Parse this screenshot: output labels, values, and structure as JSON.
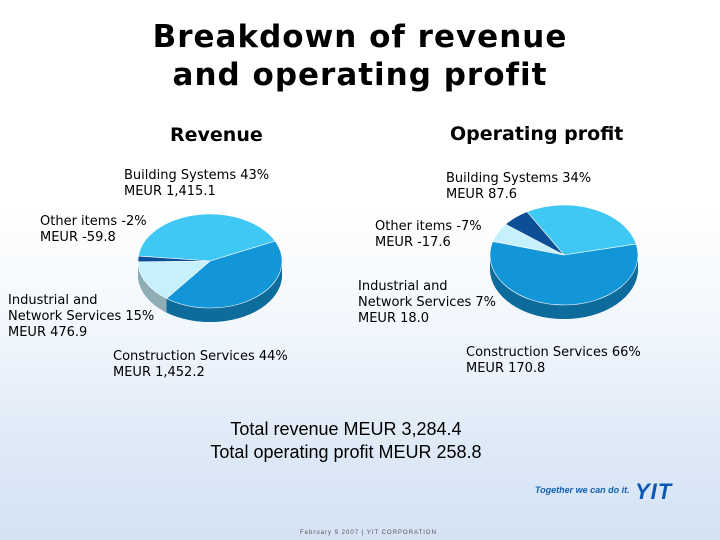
{
  "title": {
    "line1": "Breakdown of revenue",
    "line2": "and operating profit"
  },
  "chart_data": [
    {
      "type": "pie",
      "title": "Revenue",
      "slices": [
        {
          "label": "Building Systems 43%",
          "value_text": "MEUR 1,415.1",
          "percent": 43,
          "color": "#40c8f4"
        },
        {
          "label": "Construction Services 44%",
          "value_text": "MEUR 1,452.2",
          "percent": 44,
          "color": "#1396d8"
        },
        {
          "label": "Industrial and Network Services 15%",
          "value_text": "MEUR 476.9",
          "percent": 15,
          "color": "#c6f0fb"
        },
        {
          "label": "Other items -2%",
          "value_text": "MEUR -59.8",
          "percent": -2,
          "color": "#0d4f96"
        }
      ]
    },
    {
      "type": "pie",
      "title": "Operating profit",
      "slices": [
        {
          "label": "Building Systems 34%",
          "value_text": "MEUR 87.6",
          "percent": 34,
          "color": "#40c8f4"
        },
        {
          "label": "Construction Services 66%",
          "value_text": "MEUR 170.8",
          "percent": 66,
          "color": "#1396d8"
        },
        {
          "label": "Industrial and Network Services 7%",
          "value_text": "MEUR 18.0",
          "percent": 7,
          "color": "#c6f0fb"
        },
        {
          "label": "Other items -7%",
          "value_text": "MEUR -17.6",
          "percent": -7,
          "color": "#0d4f96"
        }
      ]
    }
  ],
  "labels": {
    "rev_bs": [
      "Building Systems 43%",
      "MEUR 1,415.1"
    ],
    "rev_other": [
      "Other items -2%",
      "MEUR -59.8"
    ],
    "rev_ins": [
      "Industrial and",
      "Network Services 15%",
      "MEUR 476.9"
    ],
    "rev_cs": [
      "Construction Services 44%",
      "MEUR 1,452.2"
    ],
    "op_bs": [
      "Building Systems 34%",
      "MEUR 87.6"
    ],
    "op_other": [
      "Other items -7%",
      "MEUR -17.6"
    ],
    "op_ins": [
      "Industrial and",
      "Network Services 7%",
      "MEUR 18.0"
    ],
    "op_cs": [
      "Construction Services 66%",
      "MEUR 170.8"
    ]
  },
  "totals": {
    "revenue": "Total revenue MEUR 3,284.4",
    "operating_profit": "Total operating profit MEUR 258.8"
  },
  "brand": {
    "slogan": "Together we can do it.",
    "logo": "YIT"
  },
  "footer": "February 9 2007  |  YIT CORPORATION"
}
